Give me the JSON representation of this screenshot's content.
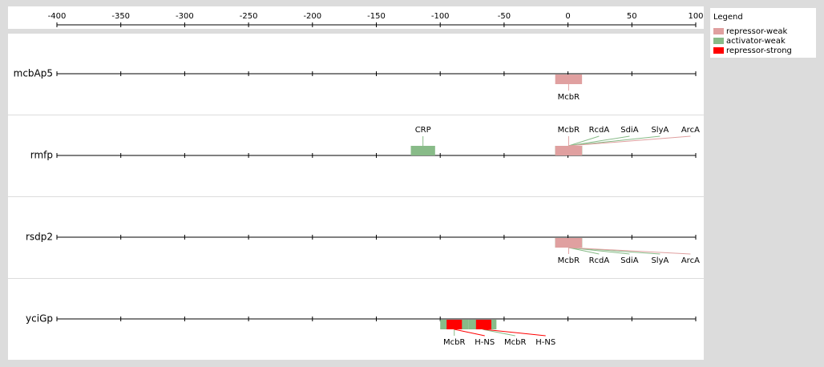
{
  "chart_data": {
    "type": "track",
    "xlim": [
      -400,
      100
    ],
    "xticks": [
      -400,
      -350,
      -300,
      -250,
      -200,
      -150,
      -100,
      -50,
      0,
      50,
      100
    ],
    "legend_title": "Legend",
    "series": [
      {
        "name": "repressor-weak",
        "color": "#e0a0a0"
      },
      {
        "name": "activator-weak",
        "color": "#88bb88"
      },
      {
        "name": "repressor-strong",
        "color": "#ff0000"
      }
    ],
    "tracks": [
      {
        "name": "mcbAp5",
        "label_side": "below",
        "sites": [
          {
            "label": "McbR",
            "start": -10,
            "end": 11,
            "color": "#e0a0a0"
          }
        ]
      },
      {
        "name": "rmfp",
        "label_side": "above",
        "sites": [
          {
            "label": "CRP",
            "start": -123,
            "end": -104,
            "color": "#88bb88"
          },
          {
            "label": "McbR",
            "start": -10,
            "end": 11,
            "color": "#e0a0a0"
          },
          {
            "label": "RcdA",
            "start": -10,
            "end": 11,
            "color": "#88bb88"
          },
          {
            "label": "SdiA",
            "start": -10,
            "end": 11,
            "color": "#88bb88"
          },
          {
            "label": "SlyA",
            "start": -10,
            "end": 11,
            "color": "#88bb88"
          },
          {
            "label": "ArcA",
            "start": -10,
            "end": 11,
            "color": "#e0a0a0"
          }
        ]
      },
      {
        "name": "rsdp2",
        "label_side": "below",
        "sites": [
          {
            "label": "McbR",
            "start": -10,
            "end": 11,
            "color": "#e0a0a0"
          },
          {
            "label": "RcdA",
            "start": -10,
            "end": 11,
            "color": "#88bb88"
          },
          {
            "label": "SdiA",
            "start": -10,
            "end": 11,
            "color": "#88bb88"
          },
          {
            "label": "SlyA",
            "start": -10,
            "end": 11,
            "color": "#88bb88"
          },
          {
            "label": "ArcA",
            "start": -10,
            "end": 11,
            "color": "#e0a0a0"
          }
        ]
      },
      {
        "name": "yciGp",
        "label_side": "below",
        "sites": [
          {
            "label": "McbR",
            "start": -100,
            "end": -78,
            "color": "#88bb88"
          },
          {
            "label": "H-NS",
            "start": -95,
            "end": -83,
            "color": "#ff0000"
          },
          {
            "label": "McbR",
            "start": -78,
            "end": -56,
            "color": "#88bb88"
          },
          {
            "label": "H-NS",
            "start": -72,
            "end": -60,
            "color": "#ff0000"
          }
        ]
      }
    ]
  }
}
